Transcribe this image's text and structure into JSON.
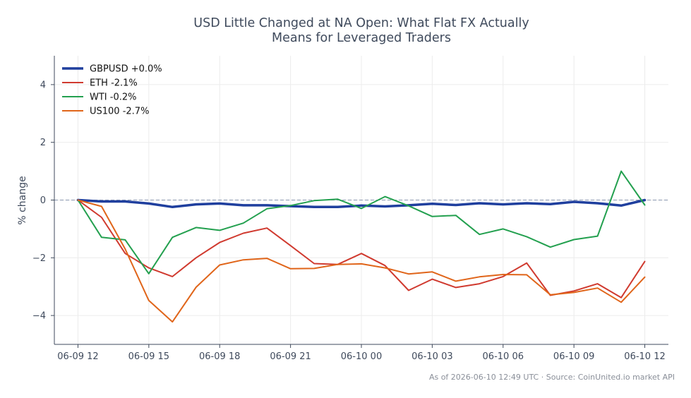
{
  "chart_data": {
    "type": "line",
    "title_lines": [
      "USD Little Changed at NA Open: What Flat FX Actually",
      "Means for Leveraged Traders"
    ],
    "ylabel": "% change",
    "xlabel": "",
    "ylim": [
      -5,
      5
    ],
    "yticks": [
      4,
      2,
      0,
      -2,
      -4
    ],
    "ytick_labels": [
      "4",
      "2",
      "0",
      "−2",
      "−4"
    ],
    "xlim": [
      "2026-06-09 11:00",
      "2026-06-10 13:00"
    ],
    "xticks": [
      "2026-06-09 12:00",
      "2026-06-09 15:00",
      "2026-06-09 18:00",
      "2026-06-09 21:00",
      "2026-06-10 00:00",
      "2026-06-10 03:00",
      "2026-06-10 06:00",
      "2026-06-10 09:00",
      "2026-06-10 12:00"
    ],
    "xtick_labels": [
      "06-09 12",
      "06-09 15",
      "06-09 18",
      "06-09 21",
      "06-10 00",
      "06-10 03",
      "06-10 06",
      "06-10 09",
      "06-10 12"
    ],
    "grid": true,
    "zero_line": true,
    "legend_position": "top-left",
    "x": [
      "2026-06-09 12:00",
      "2026-06-09 13:00",
      "2026-06-09 14:00",
      "2026-06-09 15:00",
      "2026-06-09 16:00",
      "2026-06-09 17:00",
      "2026-06-09 18:00",
      "2026-06-09 19:00",
      "2026-06-09 20:00",
      "2026-06-09 21:00",
      "2026-06-09 22:00",
      "2026-06-09 23:00",
      "2026-06-10 00:00",
      "2026-06-10 01:00",
      "2026-06-10 02:00",
      "2026-06-10 03:00",
      "2026-06-10 04:00",
      "2026-06-10 05:00",
      "2026-06-10 06:00",
      "2026-06-10 07:00",
      "2026-06-10 08:00",
      "2026-06-10 09:00",
      "2026-06-10 10:00",
      "2026-06-10 11:00",
      "2026-06-10 12:00"
    ],
    "series": [
      {
        "name": "GBPUSD +0.0%",
        "color": "#1f3f9e",
        "bold": true,
        "values": [
          0,
          -0.05,
          -0.05,
          -0.12,
          -0.24,
          -0.15,
          -0.12,
          -0.18,
          -0.18,
          -0.21,
          -0.24,
          -0.24,
          -0.19,
          -0.22,
          -0.18,
          -0.13,
          -0.17,
          -0.11,
          -0.15,
          -0.11,
          -0.14,
          -0.06,
          -0.11,
          -0.19,
          0
        ]
      },
      {
        "name": "ETH -2.1%",
        "color": "#d03a2f",
        "bold": false,
        "values": [
          0,
          -0.6,
          -1.85,
          -2.35,
          -2.65,
          -2.0,
          -1.47,
          -1.15,
          -0.97,
          -1.58,
          -2.2,
          -2.23,
          -1.85,
          -2.27,
          -3.13,
          -2.74,
          -3.03,
          -2.9,
          -2.65,
          -2.18,
          -3.3,
          -3.15,
          -2.9,
          -3.38,
          -2.13
        ]
      },
      {
        "name": "WTI -0.2%",
        "color": "#23a04f",
        "bold": false,
        "values": [
          0,
          -1.29,
          -1.38,
          -2.55,
          -1.29,
          -0.95,
          -1.05,
          -0.8,
          -0.3,
          -0.19,
          -0.02,
          0.03,
          -0.29,
          0.12,
          -0.2,
          -0.57,
          -0.53,
          -1.19,
          -1.0,
          -1.27,
          -1.63,
          -1.37,
          -1.25,
          1.0,
          -0.17
        ]
      },
      {
        "name": "US100 -2.7%",
        "color": "#e0651a",
        "bold": false,
        "values": [
          0,
          -0.22,
          -1.7,
          -3.48,
          -4.22,
          -3.02,
          -2.25,
          -2.07,
          -2.02,
          -2.38,
          -2.37,
          -2.23,
          -2.21,
          -2.35,
          -2.56,
          -2.49,
          -2.81,
          -2.66,
          -2.58,
          -2.59,
          -3.28,
          -3.2,
          -3.05,
          -3.54,
          -2.67
        ]
      }
    ],
    "footer": "As of 2026-06-10 12:49 UTC · Source: CoinUnited.io market API"
  }
}
